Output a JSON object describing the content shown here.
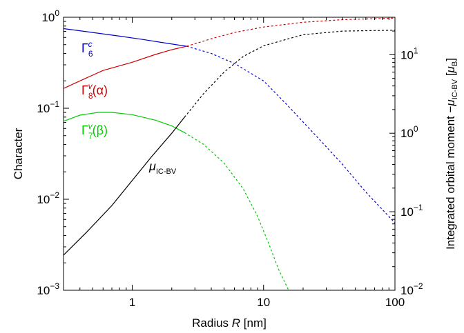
{
  "chart_data": {
    "type": "line",
    "xlabel": "Radius R [nm]",
    "ylabel_left": "Character",
    "ylabel_right": "Integrated orbital moment −μIC-BV [μB]",
    "x_scale": "log",
    "y_left_scale": "log",
    "y_right_scale": "log",
    "xlim": [
      0.3,
      100
    ],
    "ylim_left": [
      0.001,
      1
    ],
    "ylim_right": [
      0.01,
      30
    ],
    "x_ticks": [
      {
        "value": 1,
        "label": "1"
      },
      {
        "value": 10,
        "label": "10"
      },
      {
        "value": 100,
        "label": "100"
      }
    ],
    "y_left_ticks": [
      {
        "value": 1,
        "base": "10",
        "exp": "0"
      },
      {
        "value": 0.1,
        "base": "10",
        "exp": "−1"
      },
      {
        "value": 0.01,
        "base": "10",
        "exp": "−2"
      },
      {
        "value": 0.001,
        "base": "10",
        "exp": "−3"
      }
    ],
    "y_right_ticks": [
      {
        "value": 10,
        "base": "10",
        "exp": "1"
      },
      {
        "value": 1,
        "base": "10",
        "exp": "0"
      },
      {
        "value": 0.1,
        "base": "10",
        "exp": "−1"
      },
      {
        "value": 0.01,
        "base": "10",
        "exp": "−2"
      }
    ],
    "grid": false,
    "legend": "inline labels",
    "series": [
      {
        "name": "Γ6c",
        "color": "#0000cc",
        "axis": "left",
        "solid": [
          [
            0.3,
            0.75
          ],
          [
            0.5,
            0.68
          ],
          [
            0.8,
            0.62
          ],
          [
            1.2,
            0.57
          ],
          [
            1.8,
            0.52
          ],
          [
            2.6,
            0.48
          ]
        ],
        "dashed": [
          [
            2.6,
            0.48
          ],
          [
            4,
            0.4
          ],
          [
            6,
            0.31
          ],
          [
            10,
            0.2
          ],
          [
            15,
            0.11
          ],
          [
            25,
            0.05
          ],
          [
            40,
            0.024
          ],
          [
            60,
            0.012
          ],
          [
            100,
            0.0055
          ]
        ]
      },
      {
        "name": "Γ8v(α)",
        "color": "#cc0000",
        "axis": "left",
        "solid": [
          [
            0.3,
            0.165
          ],
          [
            0.4,
            0.2
          ],
          [
            0.6,
            0.26
          ],
          [
            1,
            0.32
          ],
          [
            1.5,
            0.39
          ],
          [
            2,
            0.44
          ],
          [
            2.6,
            0.48
          ]
        ],
        "dashed": [
          [
            2.6,
            0.48
          ],
          [
            4,
            0.58
          ],
          [
            6,
            0.68
          ],
          [
            10,
            0.78
          ],
          [
            20,
            0.88
          ],
          [
            40,
            0.94
          ],
          [
            100,
            0.98
          ]
        ]
      },
      {
        "name": "Γ7v(β)",
        "color": "#00cc00",
        "axis": "left",
        "solid": [
          [
            0.3,
            0.072
          ],
          [
            0.4,
            0.084
          ],
          [
            0.55,
            0.09
          ],
          [
            0.7,
            0.09
          ],
          [
            1,
            0.085
          ],
          [
            1.5,
            0.074
          ],
          [
            2,
            0.064
          ],
          [
            2.5,
            0.054
          ]
        ],
        "dashed": [
          [
            2.5,
            0.054
          ],
          [
            3.5,
            0.04
          ],
          [
            5,
            0.025
          ],
          [
            7,
            0.013
          ],
          [
            9,
            0.0065
          ],
          [
            11,
            0.0032
          ],
          [
            13,
            0.0017
          ],
          [
            15.5,
            0.001
          ]
        ]
      },
      {
        "name": "μIC-BV",
        "color": "#000000",
        "axis": "right",
        "solid": [
          [
            0.3,
            0.028
          ],
          [
            0.45,
            0.055
          ],
          [
            0.7,
            0.12
          ],
          [
            1,
            0.25
          ],
          [
            1.4,
            0.5
          ],
          [
            2,
            1
          ],
          [
            2.5,
            1.6
          ]
        ],
        "dashed": [
          [
            2.5,
            1.6
          ],
          [
            3.5,
            3.2
          ],
          [
            5,
            6
          ],
          [
            7,
            9.5
          ],
          [
            10,
            13
          ],
          [
            20,
            18
          ],
          [
            40,
            20
          ],
          [
            100,
            20.5
          ]
        ]
      }
    ],
    "labels": {
      "g6c": {
        "base": "Γ",
        "sub": "6",
        "sup": "c",
        "suffix": ""
      },
      "g8v": {
        "base": "Γ",
        "sub": "8",
        "sup": "v",
        "suffix": "(α)"
      },
      "g7v": {
        "base": "Γ",
        "sub": "7",
        "sup": "v",
        "suffix": "(β)"
      },
      "mu": {
        "base": "μ",
        "sub": "IC-BV"
      }
    }
  }
}
